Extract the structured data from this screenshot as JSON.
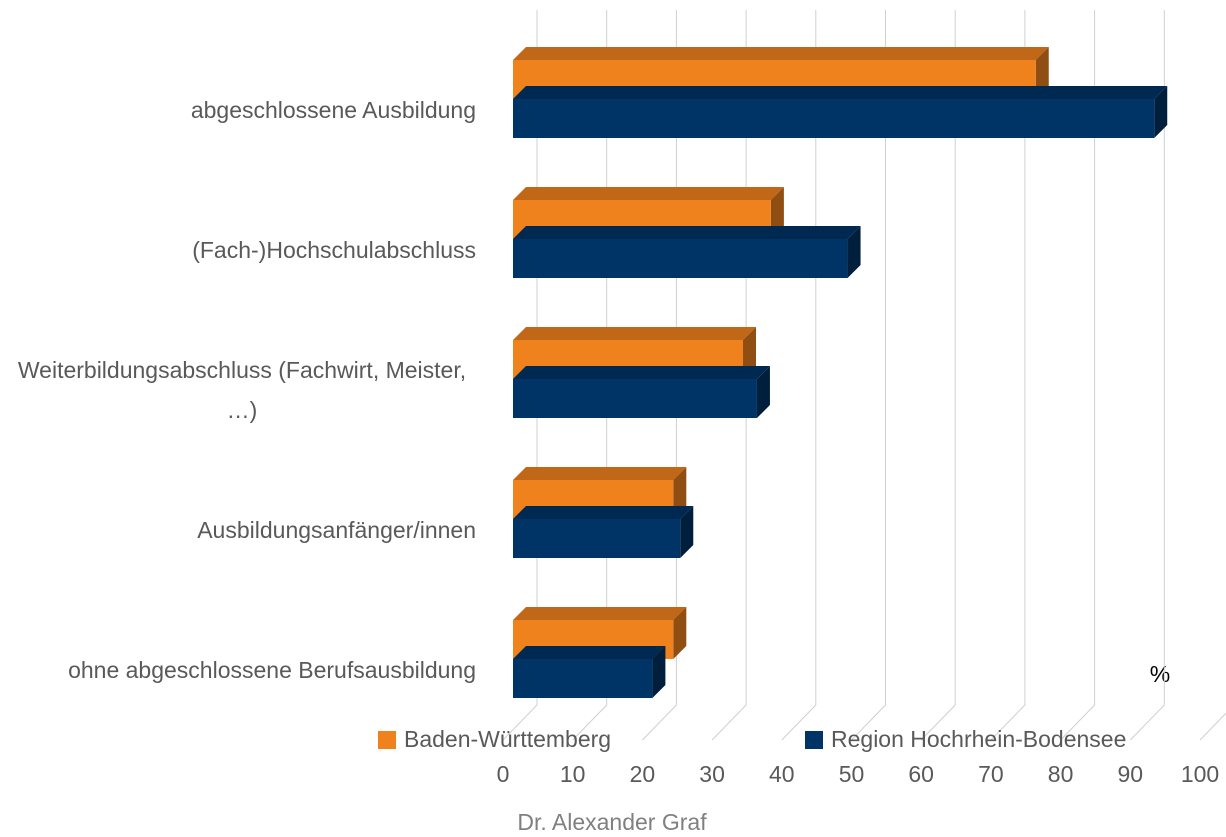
{
  "chart_data": {
    "type": "bar3d_horizontal",
    "categories": [
      "abgeschlossene Ausbildung",
      "(Fach-)Hochschulabschluss",
      "Weiterbildungsabschluss (Fachwirt, Meister, …)",
      "Ausbildungsanfänger/innen",
      "ohne abgeschlossene Berufsausbildung"
    ],
    "series": [
      {
        "name": "Baden-Württemberg",
        "color": "#f0821e",
        "values": [
          75,
          37,
          33,
          23,
          23
        ]
      },
      {
        "name": "Region Hochrhein-Bodensee",
        "color": "#003366",
        "values": [
          92,
          48,
          35,
          24,
          20
        ]
      }
    ],
    "xlim": [
      0,
      100
    ],
    "xticks": [
      0,
      10,
      20,
      30,
      40,
      50,
      60,
      70,
      80,
      90,
      100
    ],
    "x_unit_label": "%",
    "grid": true,
    "legend": "bottom",
    "footer": "Dr. Alexander Graf"
  }
}
